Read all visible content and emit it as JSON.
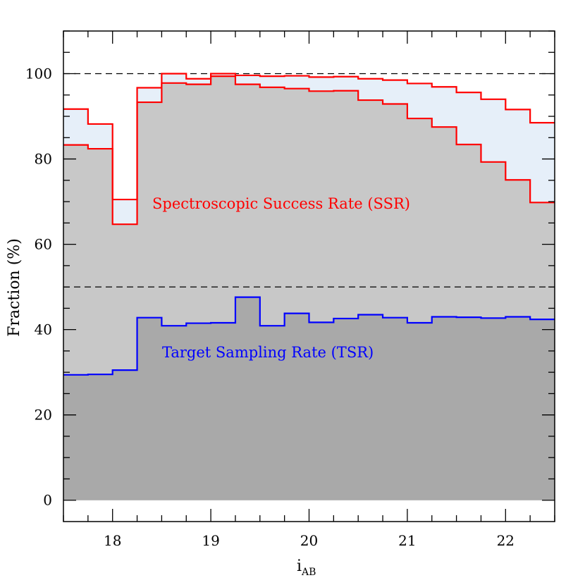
{
  "chart_data": {
    "type": "line",
    "title": "",
    "xlabel": "i",
    "xlabel_sub": "AB",
    "ylabel": "Fraction (%)",
    "xlim": [
      17.5,
      22.5
    ],
    "ylim": [
      -5,
      110
    ],
    "x_ticks": [
      18,
      19,
      20,
      21,
      22
    ],
    "y_ticks": [
      0,
      20,
      40,
      60,
      80,
      100
    ],
    "reference_lines": [
      100,
      50
    ],
    "bin_edges": [
      17.5,
      17.75,
      18.0,
      18.25,
      18.5,
      18.75,
      19.0,
      19.25,
      19.5,
      19.75,
      20.0,
      20.25,
      20.5,
      20.75,
      21.0,
      21.25,
      21.5,
      21.75,
      22.0,
      22.25,
      22.5
    ],
    "series": [
      {
        "key": "ssr_upper",
        "values": [
          91.7,
          88.2,
          70.5,
          96.7,
          100.0,
          98.8,
          100.0,
          99.6,
          99.4,
          99.5,
          99.2,
          99.3,
          98.8,
          98.5,
          97.7,
          96.9,
          95.6,
          94.0,
          91.6,
          88.5
        ]
      },
      {
        "key": "ssr_lower",
        "values": [
          83.3,
          82.4,
          64.7,
          93.3,
          97.8,
          97.5,
          99.4,
          97.5,
          96.8,
          96.5,
          95.9,
          96.0,
          93.8,
          92.9,
          89.5,
          87.5,
          83.4,
          79.3,
          75.1,
          69.8
        ]
      },
      {
        "key": "tsr",
        "values": [
          29.4,
          29.5,
          30.5,
          42.8,
          40.9,
          41.5,
          41.6,
          47.6,
          40.9,
          43.8,
          41.7,
          42.6,
          43.5,
          42.8,
          41.6,
          43.0,
          42.9,
          42.7,
          43.0,
          42.4
        ]
      }
    ],
    "annotations": [
      {
        "text": "Spectroscopic Success Rate (SSR)",
        "color": "#ff0000"
      },
      {
        "text": "Target Sampling Rate (TSR)",
        "color": "#0000ff"
      }
    ],
    "colors": {
      "ssr_line": "#ff0000",
      "tsr_line": "#0000ff",
      "ssr_band_fill": "#e6eff9",
      "light_gray_fill": "#c8c8c8",
      "dark_gray_fill": "#a9a9a9",
      "frame": "#000000"
    }
  }
}
